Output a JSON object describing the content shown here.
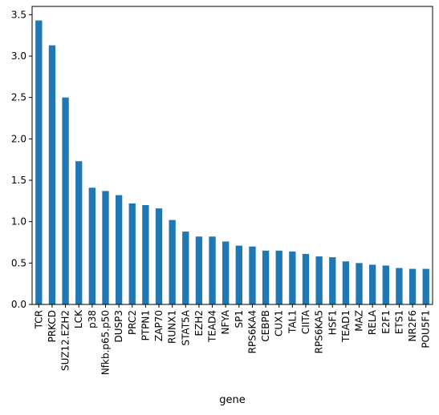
{
  "chart_data": {
    "type": "bar",
    "title": "",
    "xlabel": "gene",
    "ylabel": "",
    "ylim": [
      0,
      3.6
    ],
    "yticks": [
      0.0,
      0.5,
      1.0,
      1.5,
      2.0,
      2.5,
      3.0,
      3.5
    ],
    "ytick_labels": [
      "0.0",
      "0.5",
      "1.0",
      "1.5",
      "2.0",
      "2.5",
      "3.0",
      "3.5"
    ],
    "grid": false,
    "bar_color": "#1f77b4",
    "categories": [
      "TCR",
      "PRKCD",
      "SUZ12.EZH2",
      "LCK",
      "p38",
      "Nfkb.p65.p50",
      "DUSP3",
      "PRC2",
      "PTPN1",
      "ZAP70",
      "RUNX1",
      "STAT5A",
      "EZH2",
      "TEAD4",
      "NFYA",
      "SP1",
      "RPS6KA4",
      "CEBPB",
      "CUX1",
      "TAL1",
      "CIITA",
      "RPS6KA5",
      "HSF1",
      "TEAD1",
      "MAZ",
      "RELA",
      "E2F1",
      "ETS1",
      "NR2F6",
      "POU5F1"
    ],
    "values": [
      3.43,
      3.13,
      2.5,
      1.73,
      1.41,
      1.37,
      1.32,
      1.22,
      1.2,
      1.16,
      1.02,
      0.88,
      0.82,
      0.82,
      0.76,
      0.71,
      0.7,
      0.65,
      0.65,
      0.64,
      0.61,
      0.58,
      0.57,
      0.52,
      0.5,
      0.48,
      0.47,
      0.44,
      0.43,
      0.43
    ]
  }
}
